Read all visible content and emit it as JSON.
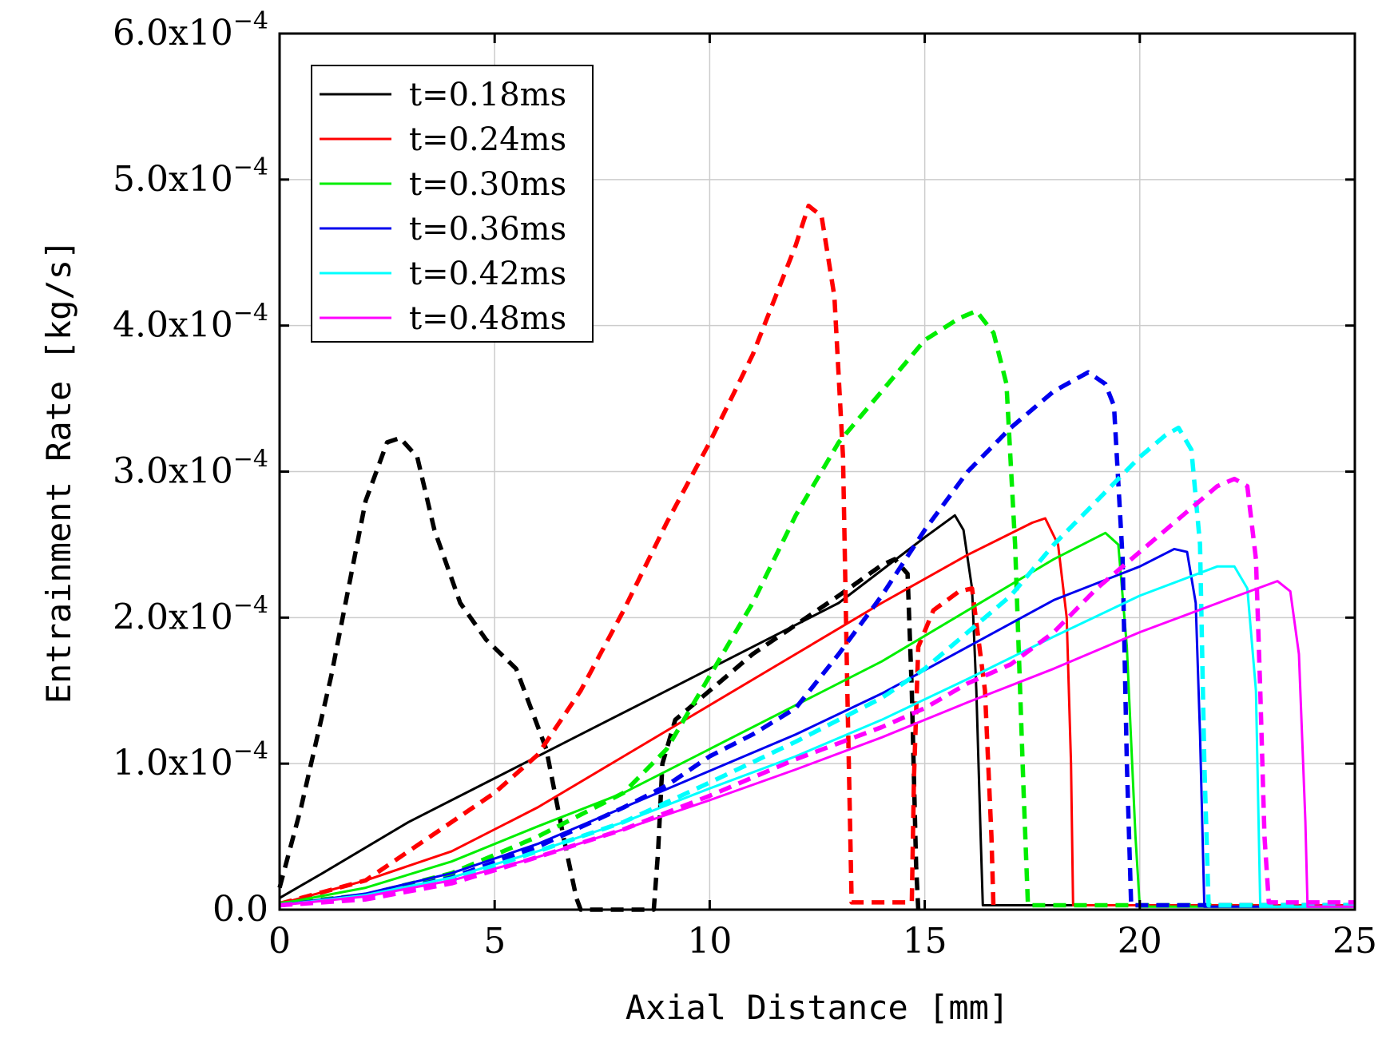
{
  "chart_data": {
    "type": "line",
    "title": "",
    "xlabel": "Axial Distance [mm]",
    "ylabel": "Entrainment Rate [kg/s]",
    "xlim": [
      0,
      25
    ],
    "ylim": [
      0,
      0.0006
    ],
    "grid": true,
    "legend_position": "top-left",
    "x_ticks": [
      {
        "value": 0,
        "label": "0"
      },
      {
        "value": 5,
        "label": "5"
      },
      {
        "value": 10,
        "label": "10"
      },
      {
        "value": 15,
        "label": "15"
      },
      {
        "value": 20,
        "label": "20"
      },
      {
        "value": 25,
        "label": "25"
      }
    ],
    "y_ticks": [
      {
        "value": 0,
        "label": "0.0",
        "exp": ""
      },
      {
        "value": 0.0001,
        "label": "1.0x10",
        "exp": "−4"
      },
      {
        "value": 0.0002,
        "label": "2.0x10",
        "exp": "−4"
      },
      {
        "value": 0.0003,
        "label": "3.0x10",
        "exp": "−4"
      },
      {
        "value": 0.0004,
        "label": "4.0x10",
        "exp": "−4"
      },
      {
        "value": 0.0005,
        "label": "5.0x10",
        "exp": "−4"
      },
      {
        "value": 0.0006,
        "label": "6.0x10",
        "exp": "−4"
      }
    ],
    "series": [
      {
        "name": "t=0.18ms",
        "color": "#000000",
        "style": "solid",
        "key": "solid-018",
        "points": [
          [
            0,
            8e-06
          ],
          [
            1,
            2.5e-05
          ],
          [
            3,
            6e-05
          ],
          [
            5,
            9e-05
          ],
          [
            7,
            0.00012
          ],
          [
            9,
            0.00015
          ],
          [
            11,
            0.00018
          ],
          [
            13,
            0.00021
          ],
          [
            15,
            0.000255
          ],
          [
            15.7,
            0.00027
          ],
          [
            15.9,
            0.00026
          ],
          [
            16.1,
            0.00022
          ],
          [
            16.2,
            0.00015
          ],
          [
            16.3,
            5e-05
          ],
          [
            16.35,
            3e-06
          ],
          [
            25,
            3e-06
          ]
        ]
      },
      {
        "name": "t=0.18ms (dashed)",
        "color": "#000000",
        "style": "dashed",
        "key": "dashed-018",
        "points": [
          [
            0,
            1.5e-05
          ],
          [
            0.5,
            7e-05
          ],
          [
            1.2,
            0.00016
          ],
          [
            2,
            0.00028
          ],
          [
            2.5,
            0.00032
          ],
          [
            2.8,
            0.000323
          ],
          [
            3.2,
            0.00031
          ],
          [
            3.6,
            0.00026
          ],
          [
            4.2,
            0.00021
          ],
          [
            4.8,
            0.000185
          ],
          [
            5.5,
            0.000165
          ],
          [
            6.2,
            0.00011
          ],
          [
            6.6,
            5e-05
          ],
          [
            6.9,
            8e-06
          ],
          [
            7,
            0
          ],
          [
            8.7,
            0
          ],
          [
            8.8,
            4e-05
          ],
          [
            8.9,
            0.0001
          ],
          [
            9.2,
            0.00013
          ],
          [
            10,
            0.00015
          ],
          [
            11,
            0.000175
          ],
          [
            12,
            0.000195
          ],
          [
            13,
            0.000215
          ],
          [
            14,
            0.000236
          ],
          [
            14.3,
            0.00024
          ],
          [
            14.6,
            0.00023
          ],
          [
            14.7,
            0.00015
          ],
          [
            14.8,
            3e-05
          ],
          [
            14.85,
            0
          ]
        ]
      },
      {
        "name": "t=0.24ms",
        "color": "#ff0000",
        "style": "solid",
        "key": "solid-024",
        "points": [
          [
            0,
            4e-06
          ],
          [
            2,
            2e-05
          ],
          [
            4,
            4e-05
          ],
          [
            6,
            7e-05
          ],
          [
            8,
            0.000105
          ],
          [
            10,
            0.00014
          ],
          [
            12,
            0.000175
          ],
          [
            14,
            0.00021
          ],
          [
            16,
            0.000243
          ],
          [
            17.5,
            0.000265
          ],
          [
            17.8,
            0.000268
          ],
          [
            18.1,
            0.00025
          ],
          [
            18.3,
            0.0002
          ],
          [
            18.4,
            0.0001
          ],
          [
            18.45,
            3e-06
          ],
          [
            25,
            3e-06
          ]
        ]
      },
      {
        "name": "t=0.24ms (dashed)",
        "color": "#ff0000",
        "style": "dashed",
        "key": "dashed-024",
        "points": [
          [
            0,
            4e-06
          ],
          [
            1,
            1.2e-05
          ],
          [
            2,
            2e-05
          ],
          [
            3,
            4e-05
          ],
          [
            4,
            6e-05
          ],
          [
            5,
            8e-05
          ],
          [
            6,
            0.000106
          ],
          [
            7,
            0.00015
          ],
          [
            8,
            0.000205
          ],
          [
            9,
            0.000265
          ],
          [
            10,
            0.00032
          ],
          [
            11,
            0.00038
          ],
          [
            12,
            0.000455
          ],
          [
            12.3,
            0.000482
          ],
          [
            12.6,
            0.000475
          ],
          [
            12.9,
            0.00042
          ],
          [
            13.1,
            0.00031
          ],
          [
            13.2,
            0.00015
          ],
          [
            13.3,
            5e-06
          ],
          [
            14.7,
            5e-06
          ],
          [
            14.75,
            9e-05
          ],
          [
            14.85,
            0.00018
          ],
          [
            15.2,
            0.000205
          ],
          [
            15.8,
            0.000218
          ],
          [
            16.1,
            0.00022
          ],
          [
            16.4,
            0.00015
          ],
          [
            16.55,
            5e-05
          ],
          [
            16.6,
            0
          ]
        ]
      },
      {
        "name": "t=0.30ms",
        "color": "#00ee00",
        "style": "solid",
        "key": "solid-030",
        "points": [
          [
            0,
            4e-06
          ],
          [
            2,
            1.5e-05
          ],
          [
            4,
            3.3e-05
          ],
          [
            6,
            5.7e-05
          ],
          [
            8,
            8e-05
          ],
          [
            10,
            0.00011
          ],
          [
            12,
            0.00014
          ],
          [
            14,
            0.00017
          ],
          [
            16,
            0.000205
          ],
          [
            18,
            0.00024
          ],
          [
            19.2,
            0.000258
          ],
          [
            19.5,
            0.00025
          ],
          [
            19.7,
            0.00018
          ],
          [
            19.9,
            5e-05
          ],
          [
            20,
            2e-06
          ],
          [
            25,
            2e-06
          ]
        ]
      },
      {
        "name": "t=0.30ms (dashed)",
        "color": "#00ee00",
        "style": "dashed",
        "key": "dashed-030",
        "points": [
          [
            0,
            4e-06
          ],
          [
            2,
            1e-05
          ],
          [
            4,
            2.5e-05
          ],
          [
            6,
            5e-05
          ],
          [
            8,
            8e-05
          ],
          [
            9,
            0.00011
          ],
          [
            10,
            0.00016
          ],
          [
            11,
            0.00021
          ],
          [
            12,
            0.00027
          ],
          [
            13,
            0.00032
          ],
          [
            14,
            0.000355
          ],
          [
            15,
            0.00039
          ],
          [
            15.8,
            0.000405
          ],
          [
            16.2,
            0.00041
          ],
          [
            16.6,
            0.000395
          ],
          [
            16.9,
            0.00036
          ],
          [
            17.1,
            0.00025
          ],
          [
            17.3,
            8e-05
          ],
          [
            17.4,
            3e-06
          ],
          [
            25,
            3e-06
          ]
        ]
      },
      {
        "name": "t=0.36ms",
        "color": "#0000ee",
        "style": "solid",
        "key": "solid-036",
        "points": [
          [
            0,
            3e-06
          ],
          [
            2,
            1.1e-05
          ],
          [
            4,
            2.5e-05
          ],
          [
            6,
            4.5e-05
          ],
          [
            8,
            7e-05
          ],
          [
            10,
            9.5e-05
          ],
          [
            12,
            0.00012
          ],
          [
            14,
            0.000148
          ],
          [
            16,
            0.00018
          ],
          [
            18,
            0.000212
          ],
          [
            20,
            0.000235
          ],
          [
            20.8,
            0.000247
          ],
          [
            21.1,
            0.000245
          ],
          [
            21.3,
            0.00021
          ],
          [
            21.4,
            0.00012
          ],
          [
            21.5,
            2e-06
          ],
          [
            25,
            2e-06
          ]
        ]
      },
      {
        "name": "t=0.36ms (dashed)",
        "color": "#0000ee",
        "style": "dashed",
        "key": "dashed-036",
        "points": [
          [
            0,
            3e-06
          ],
          [
            2,
            9e-06
          ],
          [
            4,
            2.2e-05
          ],
          [
            6,
            4.3e-05
          ],
          [
            8,
            7e-05
          ],
          [
            9,
            8.5e-05
          ],
          [
            10,
            0.000105
          ],
          [
            11,
            0.00012
          ],
          [
            12,
            0.000138
          ],
          [
            13,
            0.000175
          ],
          [
            14,
            0.000215
          ],
          [
            15,
            0.00026
          ],
          [
            16,
            0.0003
          ],
          [
            17,
            0.00033
          ],
          [
            18,
            0.000355
          ],
          [
            18.8,
            0.000368
          ],
          [
            19.2,
            0.00036
          ],
          [
            19.4,
            0.000345
          ],
          [
            19.6,
            0.00024
          ],
          [
            19.7,
            0.0001
          ],
          [
            19.8,
            3e-06
          ],
          [
            25,
            3e-06
          ]
        ]
      },
      {
        "name": "t=0.42ms",
        "color": "#00ffff",
        "style": "solid",
        "key": "solid-042",
        "points": [
          [
            0,
            3e-06
          ],
          [
            2,
            1e-05
          ],
          [
            4,
            2.2e-05
          ],
          [
            6,
            4e-05
          ],
          [
            8,
            6e-05
          ],
          [
            10,
            8.3e-05
          ],
          [
            12,
            0.000105
          ],
          [
            14,
            0.00013
          ],
          [
            16,
            0.000158
          ],
          [
            18,
            0.000187
          ],
          [
            20,
            0.000215
          ],
          [
            21.8,
            0.000235
          ],
          [
            22.2,
            0.000235
          ],
          [
            22.5,
            0.00022
          ],
          [
            22.7,
            0.00015
          ],
          [
            22.8,
            2e-06
          ],
          [
            25,
            2e-06
          ]
        ]
      },
      {
        "name": "t=0.42ms (dashed)",
        "color": "#00ffff",
        "style": "dashed",
        "key": "dashed-042",
        "points": [
          [
            0,
            3e-06
          ],
          [
            2,
            8e-06
          ],
          [
            4,
            2e-05
          ],
          [
            6,
            4e-05
          ],
          [
            8,
            6e-05
          ],
          [
            10,
            8.7e-05
          ],
          [
            12,
            0.000115
          ],
          [
            14,
            0.000145
          ],
          [
            15,
            0.000165
          ],
          [
            16,
            0.00019
          ],
          [
            17,
            0.000215
          ],
          [
            18,
            0.00025
          ],
          [
            19,
            0.00028
          ],
          [
            20,
            0.00031
          ],
          [
            20.6,
            0.000325
          ],
          [
            20.9,
            0.00033
          ],
          [
            21.2,
            0.000315
          ],
          [
            21.4,
            0.00025
          ],
          [
            21.5,
            0.0001
          ],
          [
            21.6,
            3e-06
          ],
          [
            25,
            3e-06
          ]
        ]
      },
      {
        "name": "t=0.48ms",
        "color": "#ff00ff",
        "style": "solid",
        "key": "solid-048",
        "points": [
          [
            0,
            3e-06
          ],
          [
            2,
            9e-06
          ],
          [
            4,
            2e-05
          ],
          [
            6,
            3.6e-05
          ],
          [
            8,
            5.5e-05
          ],
          [
            10,
            7.5e-05
          ],
          [
            12,
            9.6e-05
          ],
          [
            14,
            0.000118
          ],
          [
            16,
            0.000142
          ],
          [
            18,
            0.000165
          ],
          [
            20,
            0.00019
          ],
          [
            22,
            0.000212
          ],
          [
            23.2,
            0.000225
          ],
          [
            23.5,
            0.000218
          ],
          [
            23.7,
            0.000175
          ],
          [
            23.85,
            6e-05
          ],
          [
            23.9,
            2e-06
          ],
          [
            25,
            2e-06
          ]
        ]
      },
      {
        "name": "t=0.48ms (dashed)",
        "color": "#ff00ff",
        "style": "dashed",
        "key": "dashed-048",
        "points": [
          [
            0,
            3e-06
          ],
          [
            2,
            7e-06
          ],
          [
            4,
            1.8e-05
          ],
          [
            6,
            3.6e-05
          ],
          [
            8,
            5.5e-05
          ],
          [
            10,
            7.8e-05
          ],
          [
            12,
            0.000103
          ],
          [
            14,
            0.000125
          ],
          [
            15,
            0.000138
          ],
          [
            16,
            0.000155
          ],
          [
            17,
            0.000168
          ],
          [
            18,
            0.00019
          ],
          [
            19,
            0.00022
          ],
          [
            20,
            0.000245
          ],
          [
            21,
            0.00027
          ],
          [
            21.8,
            0.00029
          ],
          [
            22.2,
            0.000295
          ],
          [
            22.5,
            0.00029
          ],
          [
            22.7,
            0.00024
          ],
          [
            22.8,
            0.00015
          ],
          [
            22.9,
            5e-05
          ],
          [
            23,
            5e-06
          ],
          [
            25,
            5e-06
          ]
        ]
      }
    ],
    "legend": [
      {
        "label": "t=0.18ms",
        "color": "#000000"
      },
      {
        "label": "t=0.24ms",
        "color": "#ff0000"
      },
      {
        "label": "t=0.30ms",
        "color": "#00ee00"
      },
      {
        "label": "t=0.36ms",
        "color": "#0000ee"
      },
      {
        "label": "t=0.42ms",
        "color": "#00ffff"
      },
      {
        "label": "t=0.48ms",
        "color": "#ff00ff"
      }
    ]
  }
}
